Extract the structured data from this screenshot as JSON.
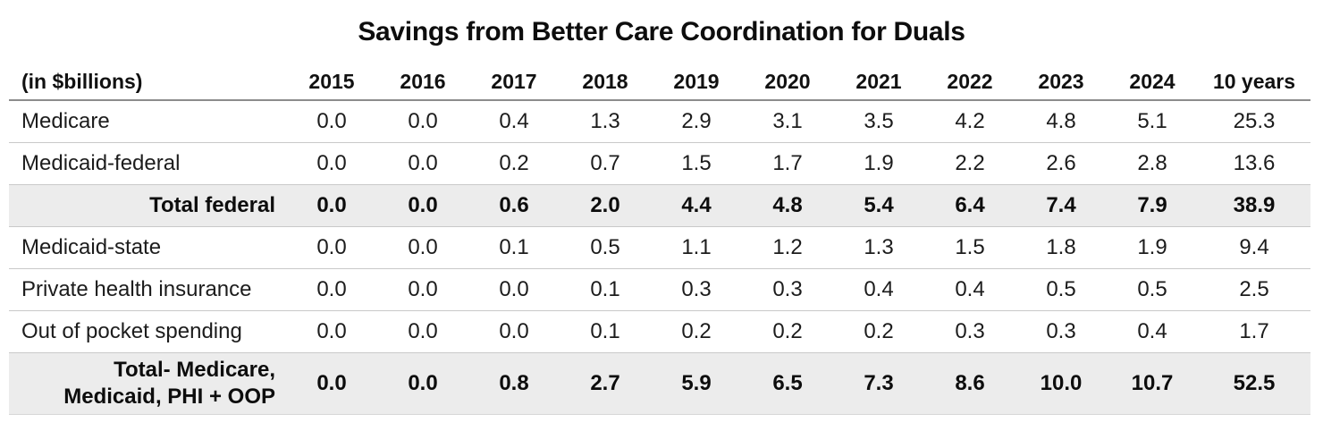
{
  "title": "Savings from Better Care Coordination for Duals",
  "colors": {
    "text": "#1c1c1c",
    "row_highlight": "#ececec",
    "separator_line": "#c9c9c9",
    "header_rule": "#8c8c8c",
    "background": "#ffffff"
  },
  "table": {
    "unit_label": "(in $billions)",
    "columns": [
      "2015",
      "2016",
      "2017",
      "2018",
      "2019",
      "2020",
      "2021",
      "2022",
      "2023",
      "2024",
      "10 years"
    ],
    "rows": [
      {
        "label_lines": [
          "Medicare"
        ],
        "emphasis": false,
        "values": [
          "0.0",
          "0.0",
          "0.4",
          "1.3",
          "2.9",
          "3.1",
          "3.5",
          "4.2",
          "4.8",
          "5.1",
          "25.3"
        ]
      },
      {
        "label_lines": [
          "Medicaid-federal"
        ],
        "emphasis": false,
        "values": [
          "0.0",
          "0.0",
          "0.2",
          "0.7",
          "1.5",
          "1.7",
          "1.9",
          "2.2",
          "2.6",
          "2.8",
          "13.6"
        ]
      },
      {
        "label_lines": [
          "Total federal"
        ],
        "emphasis": true,
        "values": [
          "0.0",
          "0.0",
          "0.6",
          "2.0",
          "4.4",
          "4.8",
          "5.4",
          "6.4",
          "7.4",
          "7.9",
          "38.9"
        ]
      },
      {
        "label_lines": [
          "Medicaid-state"
        ],
        "emphasis": false,
        "values": [
          "0.0",
          "0.0",
          "0.1",
          "0.5",
          "1.1",
          "1.2",
          "1.3",
          "1.5",
          "1.8",
          "1.9",
          "9.4"
        ]
      },
      {
        "label_lines": [
          "Private health insurance"
        ],
        "emphasis": false,
        "values": [
          "0.0",
          "0.0",
          "0.0",
          "0.1",
          "0.3",
          "0.3",
          "0.4",
          "0.4",
          "0.5",
          "0.5",
          "2.5"
        ]
      },
      {
        "label_lines": [
          "Out of pocket spending"
        ],
        "emphasis": false,
        "values": [
          "0.0",
          "0.0",
          "0.0",
          "0.1",
          "0.2",
          "0.2",
          "0.2",
          "0.3",
          "0.3",
          "0.4",
          "1.7"
        ]
      },
      {
        "label_lines": [
          "Total- Medicare,",
          "Medicaid, PHI + OOP"
        ],
        "emphasis": true,
        "values": [
          "0.0",
          "0.0",
          "0.8",
          "2.7",
          "5.9",
          "6.5",
          "7.3",
          "8.6",
          "10.0",
          "10.7",
          "52.5"
        ]
      }
    ]
  },
  "chart_data": {
    "type": "table",
    "title": "Savings from Better Care Coordination for Duals",
    "unit": "in $billions",
    "categories": [
      "2015",
      "2016",
      "2017",
      "2018",
      "2019",
      "2020",
      "2021",
      "2022",
      "2023",
      "2024",
      "10 years"
    ],
    "series": [
      {
        "name": "Medicare",
        "values": [
          0.0,
          0.0,
          0.4,
          1.3,
          2.9,
          3.1,
          3.5,
          4.2,
          4.8,
          5.1,
          25.3
        ]
      },
      {
        "name": "Medicaid-federal",
        "values": [
          0.0,
          0.0,
          0.2,
          0.7,
          1.5,
          1.7,
          1.9,
          2.2,
          2.6,
          2.8,
          13.6
        ]
      },
      {
        "name": "Total federal",
        "values": [
          0.0,
          0.0,
          0.6,
          2.0,
          4.4,
          4.8,
          5.4,
          6.4,
          7.4,
          7.9,
          38.9
        ]
      },
      {
        "name": "Medicaid-state",
        "values": [
          0.0,
          0.0,
          0.1,
          0.5,
          1.1,
          1.2,
          1.3,
          1.5,
          1.8,
          1.9,
          9.4
        ]
      },
      {
        "name": "Private health insurance",
        "values": [
          0.0,
          0.0,
          0.0,
          0.1,
          0.3,
          0.3,
          0.4,
          0.4,
          0.5,
          0.5,
          2.5
        ]
      },
      {
        "name": "Out of pocket spending",
        "values": [
          0.0,
          0.0,
          0.0,
          0.1,
          0.2,
          0.2,
          0.2,
          0.3,
          0.3,
          0.4,
          1.7
        ]
      },
      {
        "name": "Total- Medicare, Medicaid, PHI + OOP",
        "values": [
          0.0,
          0.0,
          0.8,
          2.7,
          5.9,
          6.5,
          7.3,
          8.6,
          10.0,
          10.7,
          52.5
        ]
      }
    ],
    "layout": {
      "grid": "horizontal-separators",
      "highlight_rows": [
        "Total federal",
        "Total- Medicare, Medicaid, PHI + OOP"
      ]
    }
  }
}
